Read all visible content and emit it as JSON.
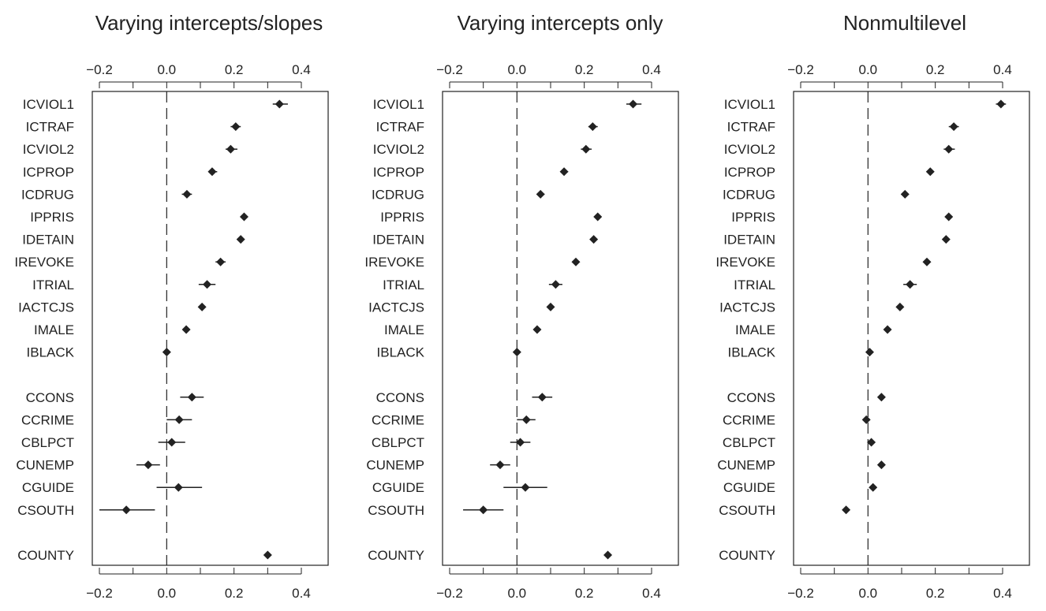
{
  "chart_data": [
    {
      "type": "dot-interval",
      "title": "Varying intercepts/slopes",
      "xlim": [
        -0.2,
        0.47
      ],
      "ticks": [
        -0.2,
        0.0,
        0.2,
        0.4
      ],
      "tick_labels": [
        "−0.2",
        "0.0",
        "0.2",
        "0.4"
      ],
      "reference_line": 0.0,
      "groups": [
        [
          {
            "label": "ICVIOL1",
            "estimate": 0.335,
            "lo": 0.315,
            "hi": 0.36
          },
          {
            "label": "ICTRAF",
            "estimate": 0.205,
            "lo": 0.19,
            "hi": 0.22
          },
          {
            "label": "ICVIOL2",
            "estimate": 0.19,
            "lo": 0.175,
            "hi": 0.21
          },
          {
            "label": "ICPROP",
            "estimate": 0.135,
            "lo": 0.125,
            "hi": 0.15
          },
          {
            "label": "ICDRUG",
            "estimate": 0.06,
            "lo": 0.045,
            "hi": 0.075
          },
          {
            "label": "IPPRIS",
            "estimate": 0.23,
            "lo": 0.222,
            "hi": 0.238
          },
          {
            "label": "IDETAIN",
            "estimate": 0.22,
            "lo": 0.212,
            "hi": 0.228
          },
          {
            "label": "IREVOKE",
            "estimate": 0.16,
            "lo": 0.145,
            "hi": 0.175
          },
          {
            "label": "ITRIAL",
            "estimate": 0.12,
            "lo": 0.095,
            "hi": 0.145
          },
          {
            "label": "IACTCJS",
            "estimate": 0.105,
            "lo": 0.097,
            "hi": 0.113
          },
          {
            "label": "IMALE",
            "estimate": 0.058,
            "lo": 0.05,
            "hi": 0.066
          },
          {
            "label": "IBLACK",
            "estimate": 0.0,
            "lo": -0.008,
            "hi": 0.008
          }
        ],
        [
          {
            "label": "CCONS",
            "estimate": 0.075,
            "lo": 0.04,
            "hi": 0.11
          },
          {
            "label": "CCRIME",
            "estimate": 0.037,
            "lo": 0.0,
            "hi": 0.075
          },
          {
            "label": "CBLPCT",
            "estimate": 0.015,
            "lo": -0.025,
            "hi": 0.055
          },
          {
            "label": "CUNEMP",
            "estimate": -0.055,
            "lo": -0.09,
            "hi": -0.02
          },
          {
            "label": "CGUIDE",
            "estimate": 0.035,
            "lo": -0.03,
            "hi": 0.105
          },
          {
            "label": "CSOUTH",
            "estimate": -0.12,
            "lo": -0.2,
            "hi": -0.035
          }
        ],
        [
          {
            "label": "COUNTY",
            "estimate": 0.3,
            "lo": 0.292,
            "hi": 0.308
          }
        ]
      ]
    },
    {
      "type": "dot-interval",
      "title": "Varying intercepts only",
      "xlim": [
        -0.2,
        0.47
      ],
      "ticks": [
        -0.2,
        0.0,
        0.2,
        0.4
      ],
      "tick_labels": [
        "−0.2",
        "0.0",
        "0.2",
        "0.4"
      ],
      "reference_line": 0.0,
      "groups": [
        [
          {
            "label": "ICVIOL1",
            "estimate": 0.345,
            "lo": 0.325,
            "hi": 0.37
          },
          {
            "label": "ICTRAF",
            "estimate": 0.225,
            "lo": 0.212,
            "hi": 0.24
          },
          {
            "label": "ICVIOL2",
            "estimate": 0.205,
            "lo": 0.19,
            "hi": 0.222
          },
          {
            "label": "ICPROP",
            "estimate": 0.14,
            "lo": 0.13,
            "hi": 0.152
          },
          {
            "label": "ICDRUG",
            "estimate": 0.07,
            "lo": 0.06,
            "hi": 0.082
          },
          {
            "label": "IPPRIS",
            "estimate": 0.24,
            "lo": 0.232,
            "hi": 0.248
          },
          {
            "label": "IDETAIN",
            "estimate": 0.228,
            "lo": 0.22,
            "hi": 0.236
          },
          {
            "label": "IREVOKE",
            "estimate": 0.175,
            "lo": 0.165,
            "hi": 0.185
          },
          {
            "label": "ITRIAL",
            "estimate": 0.115,
            "lo": 0.095,
            "hi": 0.135
          },
          {
            "label": "IACTCJS",
            "estimate": 0.1,
            "lo": 0.092,
            "hi": 0.108
          },
          {
            "label": "IMALE",
            "estimate": 0.06,
            "lo": 0.052,
            "hi": 0.068
          },
          {
            "label": "IBLACK",
            "estimate": 0.0,
            "lo": -0.008,
            "hi": 0.008
          }
        ],
        [
          {
            "label": "CCONS",
            "estimate": 0.075,
            "lo": 0.045,
            "hi": 0.105
          },
          {
            "label": "CCRIME",
            "estimate": 0.028,
            "lo": 0.0,
            "hi": 0.055
          },
          {
            "label": "CBLPCT",
            "estimate": 0.01,
            "lo": -0.02,
            "hi": 0.04
          },
          {
            "label": "CUNEMP",
            "estimate": -0.05,
            "lo": -0.08,
            "hi": -0.02
          },
          {
            "label": "CGUIDE",
            "estimate": 0.025,
            "lo": -0.04,
            "hi": 0.09
          },
          {
            "label": "CSOUTH",
            "estimate": -0.1,
            "lo": -0.16,
            "hi": -0.04
          }
        ],
        [
          {
            "label": "COUNTY",
            "estimate": 0.27,
            "lo": 0.262,
            "hi": 0.278
          }
        ]
      ]
    },
    {
      "type": "dot-interval",
      "title": "Nonmultilevel",
      "xlim": [
        -0.2,
        0.47
      ],
      "ticks": [
        -0.2,
        0.0,
        0.2,
        0.4
      ],
      "tick_labels": [
        "−0.2",
        "0.0",
        "0.2",
        "0.4"
      ],
      "reference_line": 0.0,
      "groups": [
        [
          {
            "label": "ICVIOL1",
            "estimate": 0.395,
            "lo": 0.38,
            "hi": 0.41
          },
          {
            "label": "ICTRAF",
            "estimate": 0.255,
            "lo": 0.24,
            "hi": 0.27
          },
          {
            "label": "ICVIOL2",
            "estimate": 0.24,
            "lo": 0.225,
            "hi": 0.258
          },
          {
            "label": "ICPROP",
            "estimate": 0.185,
            "lo": 0.175,
            "hi": 0.195
          },
          {
            "label": "ICDRUG",
            "estimate": 0.11,
            "lo": 0.1,
            "hi": 0.12
          },
          {
            "label": "IPPRIS",
            "estimate": 0.24,
            "lo": 0.232,
            "hi": 0.248
          },
          {
            "label": "IDETAIN",
            "estimate": 0.232,
            "lo": 0.225,
            "hi": 0.24
          },
          {
            "label": "IREVOKE",
            "estimate": 0.175,
            "lo": 0.165,
            "hi": 0.185
          },
          {
            "label": "ITRIAL",
            "estimate": 0.125,
            "lo": 0.105,
            "hi": 0.145
          },
          {
            "label": "IACTCJS",
            "estimate": 0.095,
            "lo": 0.088,
            "hi": 0.102
          },
          {
            "label": "IMALE",
            "estimate": 0.058,
            "lo": 0.05,
            "hi": 0.066
          },
          {
            "label": "IBLACK",
            "estimate": 0.005,
            "lo": -0.003,
            "hi": 0.013
          }
        ],
        [
          {
            "label": "CCONS",
            "estimate": 0.04,
            "lo": 0.032,
            "hi": 0.048
          },
          {
            "label": "CCRIME",
            "estimate": -0.005,
            "lo": -0.012,
            "hi": 0.002
          },
          {
            "label": "CBLPCT",
            "estimate": 0.01,
            "lo": 0.002,
            "hi": 0.018
          },
          {
            "label": "CUNEMP",
            "estimate": 0.04,
            "lo": 0.032,
            "hi": 0.048
          },
          {
            "label": "CGUIDE",
            "estimate": 0.015,
            "lo": 0.005,
            "hi": 0.025
          },
          {
            "label": "CSOUTH",
            "estimate": -0.065,
            "lo": -0.073,
            "hi": -0.057
          }
        ],
        [
          {
            "label": "COUNTY",
            "estimate": null,
            "lo": null,
            "hi": null
          }
        ]
      ]
    }
  ]
}
